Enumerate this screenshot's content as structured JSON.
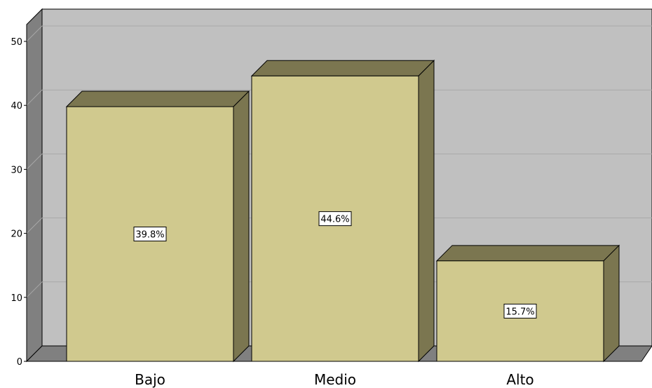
{
  "chart_data": {
    "type": "bar",
    "style": "3d",
    "categories": [
      "Bajo",
      "Medio",
      "Alto"
    ],
    "values": [
      39.8,
      44.6,
      15.7
    ],
    "data_labels": [
      "39.8%",
      "44.6%",
      "15.7%"
    ],
    "title": "",
    "xlabel": "",
    "ylabel": "",
    "ylim": [
      0,
      50
    ],
    "yticks": [
      "0",
      "10",
      "20",
      "30",
      "40",
      "50"
    ],
    "grid": true,
    "legend": "none",
    "colors": {
      "bar_front": "#d0c98e",
      "bar_top_side": "#7b7650",
      "plot_back": "#c0c0c0",
      "plot_side": "#808080",
      "grid": "#a8a8a8",
      "label_box": "#ffffff"
    }
  }
}
